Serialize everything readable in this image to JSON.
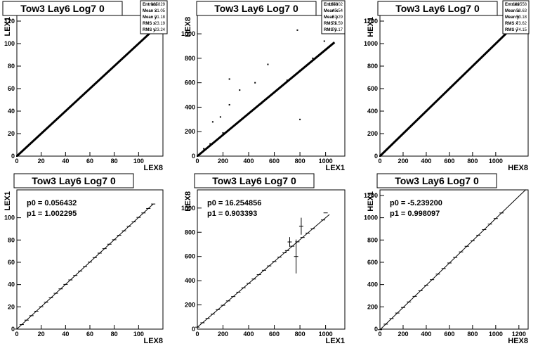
{
  "chart_data": [
    {
      "type": "scatter",
      "title": "Tow3 Lay6 Log7 0",
      "xlabel": "LEX8",
      "ylabel": "LEX1",
      "xlim": [
        0,
        120
      ],
      "ylim": [
        0,
        125
      ],
      "xticks": [
        0,
        20,
        40,
        60,
        80,
        100
      ],
      "yticks": [
        0,
        20,
        40,
        60,
        80,
        100,
        120
      ],
      "stats": [
        {
          "label": "Entries",
          "value": "165829"
        },
        {
          "label": "Mean x",
          "value": "21.05"
        },
        {
          "label": "Mean y",
          "value": "21.18"
        },
        {
          "label": "RMS x",
          "value": "23.19"
        },
        {
          "label": "RMS y",
          "value": "23.24"
        }
      ],
      "points": [
        [
          0,
          0
        ],
        [
          5,
          5
        ],
        [
          10,
          10
        ],
        [
          15,
          15
        ],
        [
          20,
          20
        ],
        [
          25,
          25
        ],
        [
          30,
          30
        ],
        [
          35,
          35
        ],
        [
          40,
          40
        ],
        [
          45,
          45
        ],
        [
          50,
          50
        ],
        [
          55,
          55
        ],
        [
          60,
          60
        ],
        [
          65,
          65
        ],
        [
          70,
          70
        ],
        [
          75,
          75
        ],
        [
          80,
          80
        ],
        [
          85,
          85
        ],
        [
          90,
          90
        ],
        [
          95,
          95
        ],
        [
          100,
          100
        ],
        [
          105,
          105
        ],
        [
          110,
          110
        ]
      ]
    },
    {
      "type": "scatter",
      "title": "Tow3 Lay6 Log7 0",
      "xlabel": "LEX1",
      "ylabel": "HEX8",
      "xlim": [
        0,
        1150
      ],
      "ylim": [
        0,
        1150
      ],
      "xticks": [
        0,
        200,
        400,
        600,
        800,
        1000
      ],
      "yticks": [
        0,
        200,
        400,
        600,
        800,
        1000
      ],
      "stats": [
        {
          "label": "Entries",
          "value": "185902"
        },
        {
          "label": "Mean x",
          "value": "45.54"
        },
        {
          "label": "Mean y",
          "value": "57.29"
        },
        {
          "label": "RMS x",
          "value": "75.59"
        },
        {
          "label": "RMS y",
          "value": "73.17"
        }
      ],
      "points": [
        [
          0,
          0
        ],
        [
          50,
          60
        ],
        [
          100,
          100
        ],
        [
          200,
          190
        ],
        [
          300,
          260
        ],
        [
          400,
          350
        ],
        [
          500,
          430
        ],
        [
          600,
          520
        ],
        [
          700,
          620
        ],
        [
          800,
          700
        ],
        [
          900,
          800
        ],
        [
          120,
          280
        ],
        [
          180,
          320
        ],
        [
          250,
          420
        ],
        [
          330,
          540
        ],
        [
          450,
          600
        ],
        [
          550,
          750
        ],
        [
          780,
          1030
        ],
        [
          990,
          940
        ],
        [
          250,
          630
        ],
        [
          800,
          300
        ]
      ]
    },
    {
      "type": "scatter",
      "title": "Tow3 Lay6 Log7 0",
      "xlabel": "HEX8",
      "ylabel": "HEX1",
      "xlim": [
        0,
        1280
      ],
      "ylim": [
        0,
        1250
      ],
      "xticks": [
        0,
        200,
        400,
        600,
        800,
        1000
      ],
      "yticks": [
        0,
        200,
        400,
        600,
        800,
        1000,
        1200
      ],
      "stats": [
        {
          "label": "Entries",
          "value": "183558"
        },
        {
          "label": "Mean x",
          "value": "58.63"
        },
        {
          "label": "Mean y",
          "value": "53.18"
        },
        {
          "label": "RMS x",
          "value": "73.62"
        },
        {
          "label": "RMS y",
          "value": "74.15"
        }
      ],
      "points": [
        [
          0,
          0
        ],
        [
          50,
          50
        ],
        [
          100,
          100
        ],
        [
          150,
          150
        ],
        [
          200,
          200
        ],
        [
          250,
          250
        ],
        [
          300,
          300
        ],
        [
          350,
          350
        ],
        [
          400,
          400
        ],
        [
          450,
          450
        ],
        [
          500,
          500
        ],
        [
          550,
          550
        ],
        [
          600,
          600
        ],
        [
          700,
          700
        ],
        [
          800,
          800
        ],
        [
          1000,
          1000
        ]
      ]
    },
    {
      "type": "line",
      "title": "Tow3 Lay6 Log7 0",
      "xlabel": "LEX8",
      "ylabel": "LEX1",
      "xlim": [
        0,
        120
      ],
      "ylim": [
        0,
        125
      ],
      "xticks": [
        0,
        20,
        40,
        60,
        80,
        100
      ],
      "yticks": [
        0,
        20,
        40,
        60,
        80,
        100
      ],
      "fit": [
        {
          "label": "p0 = 0.056432"
        },
        {
          "label": "p1 = 1.002295"
        }
      ],
      "p0": 0.056432,
      "p1": 1.002295,
      "fit_range": [
        0,
        112
      ],
      "profile_x": [
        0,
        4,
        8,
        12,
        16,
        20,
        24,
        28,
        32,
        36,
        40,
        44,
        48,
        52,
        56,
        60,
        64,
        68,
        72,
        76,
        80,
        84,
        88,
        92,
        96,
        100,
        104,
        108,
        112
      ],
      "profile_err": []
    },
    {
      "type": "line",
      "title": "Tow3 Lay6 Log7 0",
      "xlabel": "LEX1",
      "ylabel": "HEX8",
      "xlim": [
        0,
        1150
      ],
      "ylim": [
        0,
        1150
      ],
      "xticks": [
        0,
        200,
        400,
        600,
        800,
        1000
      ],
      "yticks": [
        0,
        200,
        400,
        600,
        800,
        1000
      ],
      "fit": [
        {
          "label": "p0 = 16.254856"
        },
        {
          "label": "p1 = 0.903393"
        }
      ],
      "p0": 16.254856,
      "p1": 0.903393,
      "fit_range": [
        0,
        1030
      ],
      "profile_x": [
        0,
        40,
        80,
        120,
        160,
        200,
        240,
        280,
        320,
        360,
        400,
        440,
        480,
        520,
        560,
        600,
        640,
        680,
        700,
        740,
        780,
        820,
        860,
        900,
        980
      ],
      "profile_err": [
        {
          "x": 720,
          "y": 720,
          "err": 40
        },
        {
          "x": 770,
          "y": 600,
          "err": 140
        },
        {
          "x": 810,
          "y": 850,
          "err": 70
        },
        {
          "x": 1000,
          "y": 960,
          "err": 0
        }
      ]
    },
    {
      "type": "line",
      "title": "Tow3 Lay6 Log7 0",
      "xlabel": "HEX8",
      "ylabel": "HEX1",
      "xlim": [
        0,
        1280
      ],
      "ylim": [
        0,
        1250
      ],
      "xticks": [
        0,
        200,
        400,
        600,
        800,
        1000,
        1200
      ],
      "yticks": [
        0,
        200,
        400,
        600,
        800,
        1000,
        1200
      ],
      "fit": [
        {
          "label": "p0 = -5.239200"
        },
        {
          "label": "p1 = 0.998097"
        }
      ],
      "p0": -5.2392,
      "p1": 0.998097,
      "fit_range": [
        0,
        1260
      ],
      "profile_x": [
        0,
        50,
        100,
        150,
        200,
        250,
        300,
        350,
        400,
        450,
        500,
        550,
        600,
        650,
        700,
        750,
        800,
        850,
        900,
        950,
        1000,
        1050
      ],
      "profile_err": []
    }
  ]
}
